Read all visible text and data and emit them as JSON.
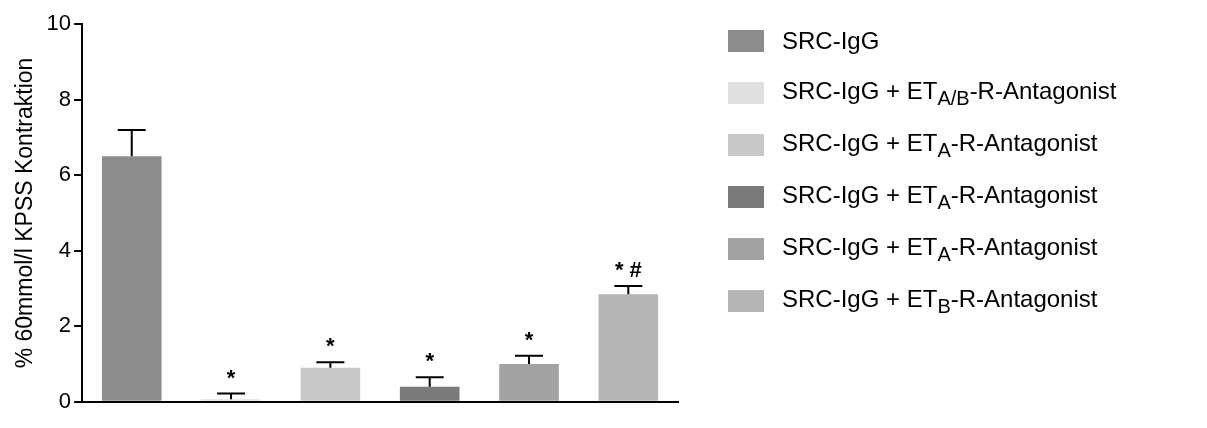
{
  "chart_data": {
    "type": "bar",
    "ylabel": "% 60mmol/l KPSS Kontraktion",
    "categories": [
      null,
      null,
      null,
      null,
      null,
      null
    ],
    "series": [
      {
        "name": "SRC-IgG",
        "color": "#8c8c8c",
        "values": [
          6.5,
          null,
          null,
          null,
          null,
          null
        ],
        "errors": [
          [
            6.5,
            7.2
          ],
          null,
          null,
          null,
          null,
          null
        ]
      },
      {
        "name": "SRC-IgG + ET$_{A/B}$-R-Antagonist",
        "color": "#e0e0e0",
        "values": [
          null,
          0.07,
          null,
          null,
          null,
          null
        ],
        "errors": [
          null,
          [
            0.07,
            0.22
          ],
          null,
          null,
          null,
          null
        ],
        "value_labels": [
          null,
          "*",
          null,
          null,
          null,
          null
        ]
      },
      {
        "name": "SRC-IgG + ET$_{A}$-R-Antagonist",
        "color": "#c8c8c8",
        "values": [
          null,
          null,
          0.9,
          null,
          null,
          null
        ],
        "errors": [
          null,
          null,
          [
            0.9,
            1.05
          ],
          null,
          null,
          null
        ],
        "value_labels": [
          null,
          null,
          "*",
          null,
          null,
          null
        ]
      },
      {
        "name": "SRC-IgG + ET$_{A}$-R-Antagonist",
        "color": "#7a7a7a",
        "values": [
          null,
          null,
          null,
          0.4,
          null,
          null
        ],
        "errors": [
          null,
          null,
          null,
          [
            0.4,
            0.65
          ],
          null,
          null
        ],
        "value_labels": [
          null,
          null,
          null,
          "*",
          null,
          null
        ]
      },
      {
        "name": "SRC-IgG + ET$_{A}$-R-Antagonist",
        "color": "#a3a3a3",
        "values": [
          null,
          null,
          null,
          null,
          1.0,
          null
        ],
        "errors": [
          null,
          null,
          null,
          null,
          [
            1.0,
            1.22
          ],
          null
        ],
        "value_labels": [
          null,
          null,
          null,
          null,
          "*",
          null
        ]
      },
      {
        "name": "SRC-IgG + ET$_{B}$-R-Antagonist",
        "color": "#b5b5b5",
        "values": [
          null,
          null,
          null,
          null,
          null,
          2.85
        ],
        "errors": [
          null,
          null,
          null,
          null,
          null,
          [
            2.85,
            3.07
          ]
        ],
        "value_labels": [
          null,
          null,
          null,
          null,
          null,
          "* #"
        ]
      }
    ],
    "ylim": [
      0,
      10
    ],
    "yticks": [
      0,
      2,
      4,
      6,
      8,
      10
    ],
    "grid": false,
    "legend": "right",
    "tick_labels": "y"
  }
}
